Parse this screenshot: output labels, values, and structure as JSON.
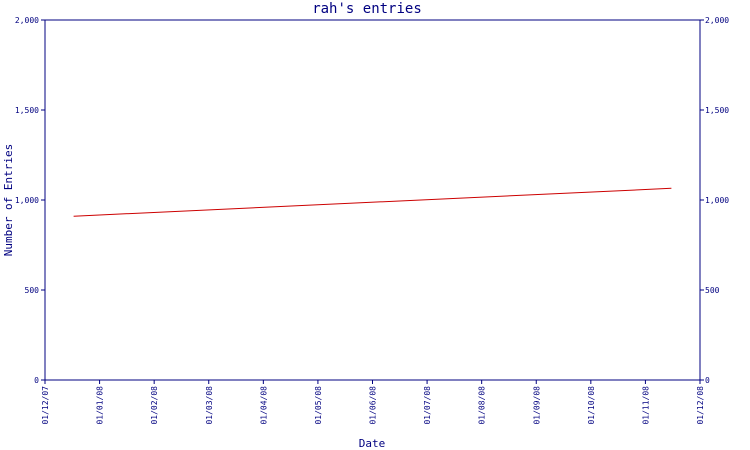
{
  "chart_data": {
    "type": "line",
    "title": "rah's entries",
    "xlabel": "Date",
    "ylabel": "Number of Entries",
    "x_tick_labels": [
      "01/12/07",
      "01/01/08",
      "01/02/08",
      "01/03/08",
      "01/04/08",
      "01/05/08",
      "01/06/08",
      "01/07/08",
      "01/08/08",
      "01/09/08",
      "01/10/08",
      "01/11/08",
      "01/12/08"
    ],
    "y_tick_labels": [
      "0",
      "500",
      "1,000",
      "1,500",
      "2,000"
    ],
    "y_ticks": [
      0,
      500,
      1000,
      1500,
      2000
    ],
    "ylim": [
      0,
      2000
    ],
    "xlim": [
      "2007-12-01",
      "2008-12-01"
    ],
    "series": [
      {
        "x": [
          "2007-12-17",
          "2008-11-15"
        ],
        "y": [
          910,
          1065
        ]
      }
    ],
    "colors": {
      "axis": "#000080",
      "line": "#cc0000"
    },
    "grid": false,
    "y_axis_both_sides": true
  }
}
